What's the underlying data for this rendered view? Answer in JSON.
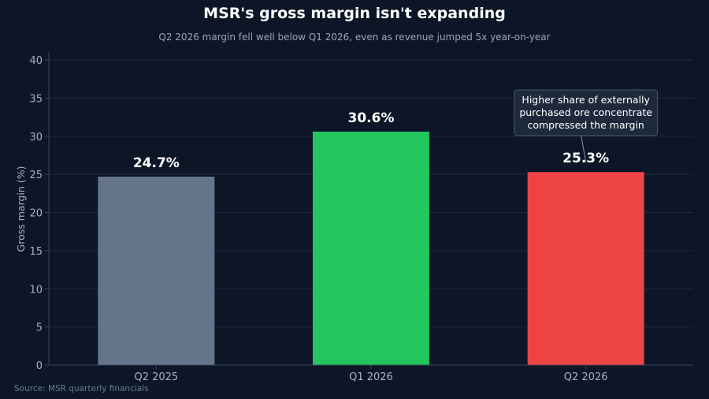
{
  "chart_data": {
    "type": "bar",
    "title": "MSR's gross margin isn't expanding",
    "subtitle": "Q2 2026 margin fell well below Q1 2026, even as revenue jumped 5x year-on-year",
    "xlabel": "",
    "ylabel": "Gross margin (%)",
    "ylim": [
      0,
      40
    ],
    "yticks": [
      0,
      5,
      10,
      15,
      20,
      25,
      30,
      35,
      40
    ],
    "grid": true,
    "categories": [
      "Q2 2025",
      "Q1 2026",
      "Q2 2026"
    ],
    "values": [
      24.7,
      30.6,
      25.3
    ],
    "value_labels": [
      "24.7%",
      "30.6%",
      "25.3%"
    ],
    "colors": [
      "#64748b",
      "#22c55e",
      "#ef4444"
    ],
    "annotation": {
      "target_category": "Q2 2026",
      "lines": [
        "Higher share of externally",
        "purchased ore concentrate",
        "compressed the margin"
      ]
    },
    "source": "Source: MSR quarterly financials"
  }
}
